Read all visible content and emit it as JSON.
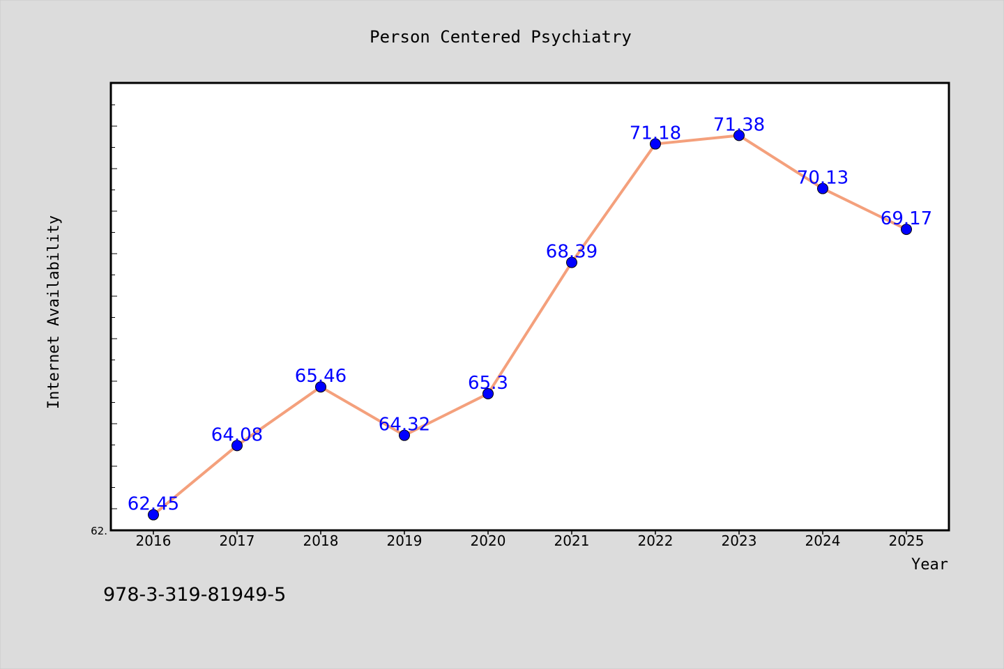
{
  "chart_data": {
    "type": "line",
    "title": "Person Centered Psychiatry",
    "xlabel": "Year",
    "ylabel": "Internet Availability",
    "categories": [
      "2016",
      "2017",
      "2018",
      "2019",
      "2020",
      "2021",
      "2022",
      "2023",
      "2024",
      "2025"
    ],
    "series": [
      {
        "values": [
          62.45,
          64.08,
          65.46,
          64.32,
          65.3,
          68.39,
          71.18,
          71.38,
          70.13,
          69.17
        ],
        "labels": [
          "62.45",
          "64.08",
          "65.46",
          "64.32",
          "65.3",
          "68.39",
          "71.18",
          "71.38",
          "70.13",
          "69.17"
        ]
      }
    ],
    "ylim": [
      62.1,
      72.6
    ],
    "y_tick_label": "62.",
    "grid": false,
    "legend": "none"
  },
  "colors": {
    "background": "#dcdcdc",
    "plot_background": "#ffffff",
    "line": "#f4a07c",
    "marker": "#0000ff",
    "data_label": "#0000ff",
    "text": "#000000"
  },
  "footer": {
    "isbn": "978-3-319-81949-5"
  }
}
